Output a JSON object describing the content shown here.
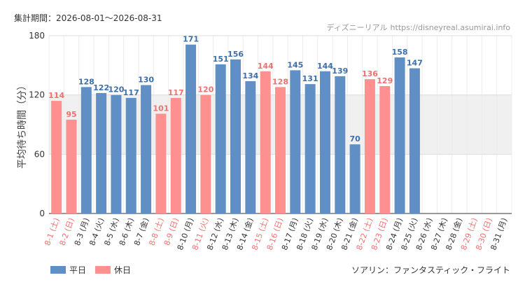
{
  "header": {
    "period": "集計期間：2026-08-01〜2026-08-31",
    "credit_name": "ディズニーリアル",
    "credit_url": "https://disneyreal.asumirai.info"
  },
  "attraction": "ソアリン：ファンタスティック・フライト",
  "chart_data": {
    "type": "bar",
    "ylabel": "平均待ち時間（分）",
    "ylim": [
      0,
      180
    ],
    "yticks": [
      0,
      60,
      120,
      180
    ],
    "shaded_band": [
      60,
      120
    ],
    "categories": [
      "8-1",
      "8-2",
      "8-3",
      "8-4",
      "8-5",
      "8-6",
      "8-7",
      "8-8",
      "8-9",
      "8-10",
      "8-11",
      "8-12",
      "8-13",
      "8-14",
      "8-15",
      "8-16",
      "8-17",
      "8-18",
      "8-19",
      "8-20",
      "8-21",
      "8-22",
      "8-23",
      "8-24",
      "8-25",
      "8-26",
      "8-27",
      "8-28",
      "8-29",
      "8-30",
      "8-31"
    ],
    "weekdays": [
      "土",
      "日",
      "月",
      "火",
      "水",
      "木",
      "金",
      "土",
      "日",
      "月",
      "火",
      "水",
      "木",
      "金",
      "土",
      "日",
      "月",
      "火",
      "水",
      "木",
      "金",
      "土",
      "日",
      "月",
      "火",
      "水",
      "木",
      "金",
      "土",
      "日",
      "月"
    ],
    "day_type": [
      "holiday",
      "holiday",
      "weekday",
      "weekday",
      "weekday",
      "weekday",
      "weekday",
      "holiday",
      "holiday",
      "weekday",
      "holiday",
      "weekday",
      "weekday",
      "weekday",
      "holiday",
      "holiday",
      "weekday",
      "weekday",
      "weekday",
      "weekday",
      "weekday",
      "holiday",
      "holiday",
      "weekday",
      "weekday",
      "weekday",
      "weekday",
      "weekday",
      "holiday",
      "holiday",
      "weekday"
    ],
    "values": [
      114,
      95,
      128,
      122,
      120,
      117,
      130,
      101,
      117,
      171,
      120,
      151,
      156,
      134,
      144,
      128,
      145,
      131,
      144,
      139,
      70,
      136,
      129,
      158,
      147,
      null,
      null,
      null,
      null,
      null,
      null
    ],
    "series": [
      {
        "name": "平日",
        "color": "#5f8fc4",
        "label_color": "#3d6fa8"
      },
      {
        "name": "休日",
        "color": "#ff9090",
        "label_color": "#f07070"
      }
    ],
    "grid": true,
    "legend_position": "bottom-left"
  }
}
